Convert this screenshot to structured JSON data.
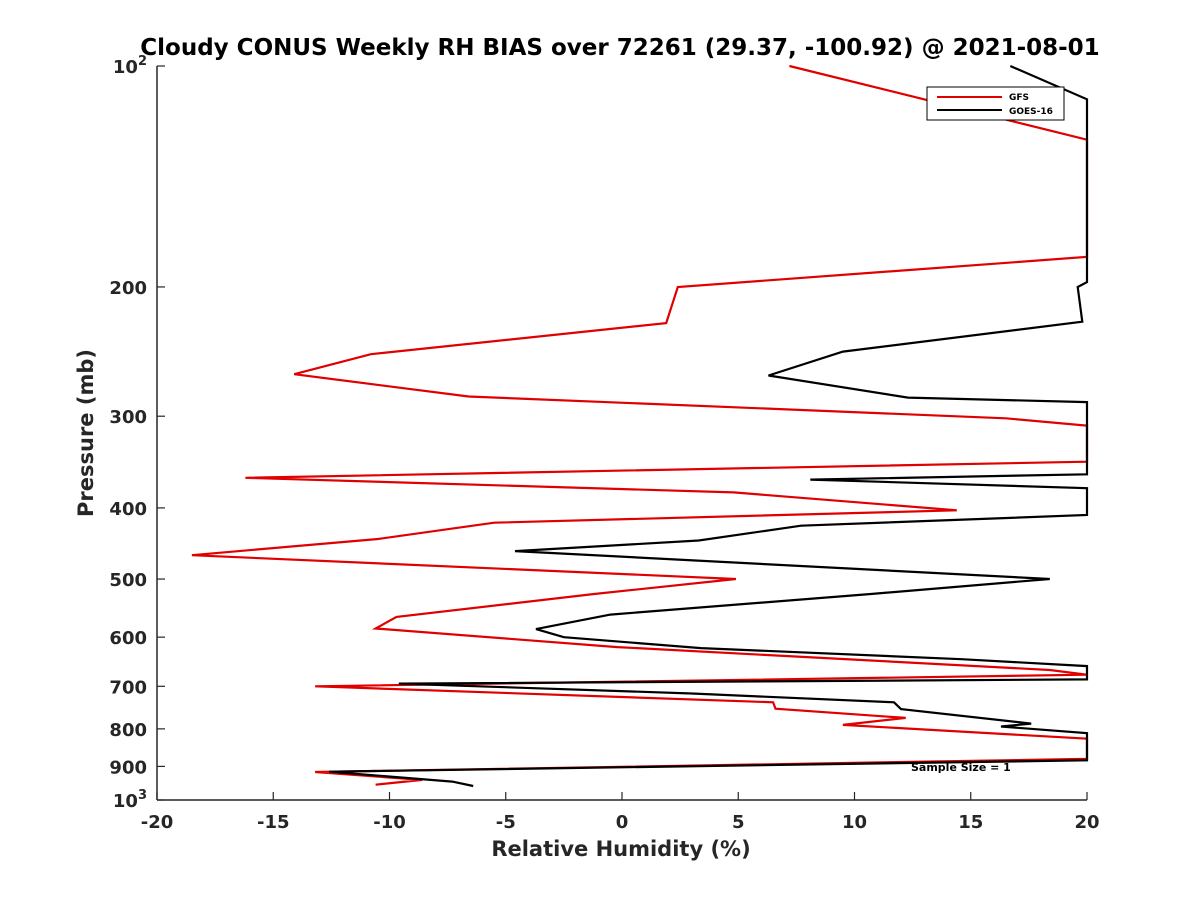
{
  "chart_data": {
    "type": "line",
    "title": "Cloudy CONUS Weekly RH BIAS over 72261 (29.37, -100.92) @ 2021-08-01",
    "xlabel": "Relative Humidity (%)",
    "ylabel": "Pressure (mb)",
    "xlim": [
      -20,
      20
    ],
    "ylim": [
      1000,
      100
    ],
    "yscale": "log",
    "reverse_y": true,
    "x_ticks": [
      "-20",
      "-15",
      "-10",
      "-5",
      "0",
      "5",
      "10",
      "15",
      "20"
    ],
    "y_ticks": [
      {
        "value": 100,
        "base": "10",
        "exp": "2"
      },
      {
        "value": 200,
        "label": "200"
      },
      {
        "value": 300,
        "label": "300"
      },
      {
        "value": 400,
        "label": "400"
      },
      {
        "value": 500,
        "label": "500"
      },
      {
        "value": 600,
        "label": "600"
      },
      {
        "value": 700,
        "label": "700"
      },
      {
        "value": 800,
        "label": "800"
      },
      {
        "value": 900,
        "label": "900"
      },
      {
        "value": 1000,
        "base": "10",
        "exp": "3"
      }
    ],
    "legend_position": "top-right",
    "annotation": "Sample Size = 1",
    "series": [
      {
        "name": "GFS",
        "color": "#e00000",
        "points": [
          [
            7.2,
            100
          ],
          [
            20,
            126
          ],
          [
            20,
            182
          ],
          [
            2.4,
            200
          ],
          [
            1.9,
            224
          ],
          [
            -10.8,
            247
          ],
          [
            -14.1,
            263
          ],
          [
            -6.6,
            282
          ],
          [
            16.5,
            302
          ],
          [
            20,
            309
          ],
          [
            20,
            346
          ],
          [
            -16.2,
            364
          ],
          [
            4.8,
            381
          ],
          [
            14.4,
            403
          ],
          [
            -5.5,
            419
          ],
          [
            -10.5,
            441
          ],
          [
            -18.5,
            464
          ],
          [
            4.9,
            500
          ],
          [
            -1.2,
            524
          ],
          [
            -9.7,
            563
          ],
          [
            -10.6,
            584
          ],
          [
            -0.2,
            619
          ],
          [
            18.4,
            665
          ],
          [
            20,
            675
          ],
          [
            -13.2,
            700
          ],
          [
            6.5,
            736
          ],
          [
            6.6,
            751
          ],
          [
            12.2,
            773
          ],
          [
            9.5,
            790
          ],
          [
            20,
            825
          ],
          [
            20,
            879
          ],
          [
            -13.2,
            916
          ],
          [
            -8.6,
            939
          ],
          [
            -10.6,
            953
          ]
        ]
      },
      {
        "name": "GOES-16",
        "color": "#000000",
        "points": [
          [
            16.7,
            100
          ],
          [
            20,
            111
          ],
          [
            20,
            197
          ],
          [
            19.6,
            200
          ],
          [
            19.8,
            223
          ],
          [
            9.5,
            245
          ],
          [
            6.3,
            264
          ],
          [
            12.3,
            283
          ],
          [
            20,
            287
          ],
          [
            20,
            360
          ],
          [
            8.1,
            366
          ],
          [
            20,
            376
          ],
          [
            20,
            409
          ],
          [
            7.7,
            423
          ],
          [
            3.3,
            443
          ],
          [
            -4.6,
            458
          ],
          [
            18.4,
            500
          ],
          [
            10.7,
            524
          ],
          [
            -0.5,
            559
          ],
          [
            -3.7,
            585
          ],
          [
            -2.5,
            600
          ],
          [
            3.4,
            621
          ],
          [
            14.6,
            643
          ],
          [
            20,
            657
          ],
          [
            20,
            685
          ],
          [
            -9.6,
            694
          ],
          [
            3.0,
            716
          ],
          [
            11.7,
            736
          ],
          [
            12.0,
            752
          ],
          [
            17.6,
            787
          ],
          [
            16.3,
            794
          ],
          [
            20,
            811
          ],
          [
            20,
            883
          ],
          [
            -12.6,
            915
          ],
          [
            -7.3,
            944
          ],
          [
            -6.4,
            957
          ]
        ]
      }
    ]
  }
}
